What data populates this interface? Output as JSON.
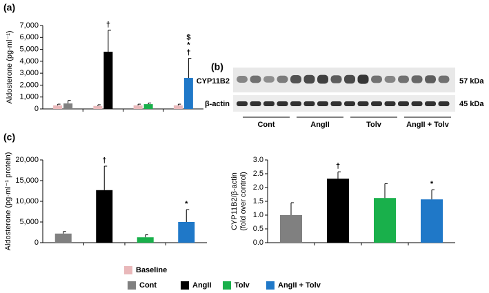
{
  "legend": [
    {
      "name": "Baseline",
      "color": "#e9b8ba"
    },
    {
      "name": "Cont",
      "color": "#808080"
    },
    {
      "name": "AngII",
      "color": "#000000"
    },
    {
      "name": "Tolv",
      "color": "#19b04b"
    },
    {
      "name": "AngII + Tolv",
      "color": "#1f78c8"
    }
  ],
  "blot": {
    "panel_label": "(b)",
    "rows": [
      "CYP11B2",
      "β-actin"
    ],
    "sizes": [
      "57 kDa",
      "45 kDa"
    ],
    "groups": [
      "Cont",
      "AngII",
      "Tolv",
      "AngII + Tolv"
    ]
  },
  "chart_data": [
    {
      "type": "bar",
      "panel_label": "(a)",
      "ylabel": [
        "Aldosterone (pg·ml⁻¹)"
      ],
      "categories": [
        null,
        null,
        null,
        null
      ],
      "ylim": [
        0,
        7000
      ],
      "yticks": [
        0,
        {
          "value": 1000,
          "label": "1,000"
        },
        {
          "value": 2000,
          "label": "2,000"
        },
        {
          "value": 3000,
          "label": "3,000"
        },
        {
          "value": 4000,
          "label": "4,000"
        },
        {
          "value": 5000,
          "label": "5,000"
        },
        {
          "value": 6000,
          "label": "6,000"
        },
        {
          "value": 7000,
          "label": "7,000"
        }
      ],
      "series": [
        {
          "name": "Baseline",
          "color": "#e9b8ba",
          "values": [
            300,
            250,
            300,
            300
          ],
          "errors": [
            100,
            100,
            100,
            100
          ]
        },
        {
          "colors": [
            "#808080",
            "#000000",
            "#19b04b",
            "#1f78c8"
          ],
          "values": [
            460,
            4800,
            400,
            2600
          ],
          "errors": [
            250,
            1800,
            100,
            1650
          ]
        }
      ],
      "annotations": [
        null,
        [
          "†"
        ],
        null,
        [
          "$",
          "*",
          "†"
        ]
      ]
    },
    {
      "type": "bar",
      "panel_label": "(c)",
      "ylabel": [
        "Aldosterone (pg·ml⁻¹ protein)"
      ],
      "categories": [
        null,
        null,
        null,
        null
      ],
      "ylim": [
        0,
        20000
      ],
      "yticks": [
        0,
        {
          "value": 5000,
          "label": "5,000"
        },
        {
          "value": 10000,
          "label": "10,000"
        },
        {
          "value": 15000,
          "label": "15,000"
        },
        {
          "value": 20000,
          "label": "20,000"
        }
      ],
      "series": [
        {
          "colors": [
            "#808080",
            "#000000",
            "#19b04b",
            "#1f78c8"
          ],
          "values": [
            2200,
            12700,
            1300,
            5000
          ],
          "errors": [
            500,
            5800,
            600,
            3000
          ]
        }
      ],
      "annotations": [
        null,
        [
          "†"
        ],
        null,
        [
          "*"
        ]
      ]
    },
    {
      "type": "bar",
      "ylabel": [
        "CYP11B2/β-actin",
        "(fold over control)"
      ],
      "categories": [
        null,
        null,
        null,
        null
      ],
      "ylim": [
        0,
        3.0
      ],
      "yticks": [
        {
          "value": 0,
          "label": "0.0"
        },
        0.5,
        {
          "value": 1,
          "label": "1.0"
        },
        1.5,
        {
          "value": 2,
          "label": "2.0"
        },
        2.5,
        {
          "value": 3,
          "label": "3.0"
        }
      ],
      "series": [
        {
          "colors": [
            "#808080",
            "#000000",
            "#19b04b",
            "#1f78c8"
          ],
          "values": [
            1.0,
            2.32,
            1.62,
            1.57
          ],
          "errors": [
            0.45,
            0.25,
            0.52,
            0.35
          ]
        }
      ],
      "annotations": [
        null,
        [
          "†"
        ],
        null,
        [
          "*"
        ]
      ]
    }
  ]
}
